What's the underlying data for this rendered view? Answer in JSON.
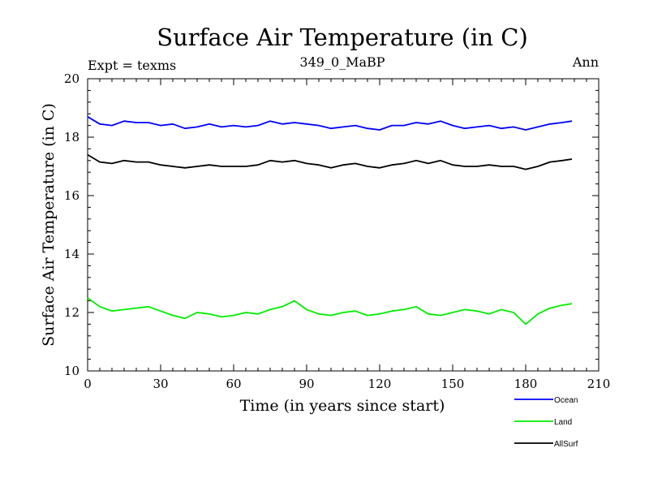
{
  "chart_data": {
    "type": "line",
    "title": "Surface Air Temperature (in C)",
    "subtitle_left": "Expt = texms",
    "subtitle_center": "349_0_MaBP",
    "subtitle_right": "Ann",
    "xlabel": "Time (in years since start)",
    "ylabel": "Surface Air Temperature (in C)",
    "xlim": [
      0,
      210
    ],
    "ylim": [
      10,
      20
    ],
    "xticks": [
      0,
      30,
      60,
      90,
      120,
      150,
      180,
      210
    ],
    "yticks": [
      10,
      12,
      14,
      16,
      18,
      20
    ],
    "grid": false,
    "legend_position": "bottom-right",
    "x": [
      0,
      5,
      10,
      15,
      20,
      25,
      30,
      35,
      40,
      45,
      50,
      55,
      60,
      65,
      70,
      75,
      80,
      85,
      90,
      95,
      100,
      105,
      110,
      115,
      120,
      125,
      130,
      135,
      140,
      145,
      150,
      155,
      160,
      165,
      170,
      175,
      180,
      185,
      190,
      195,
      199
    ],
    "series": [
      {
        "name": "Ocean",
        "color": "#0000ff",
        "values": [
          18.7,
          18.45,
          18.4,
          18.55,
          18.5,
          18.5,
          18.4,
          18.45,
          18.3,
          18.35,
          18.45,
          18.35,
          18.4,
          18.35,
          18.4,
          18.55,
          18.45,
          18.5,
          18.45,
          18.4,
          18.3,
          18.35,
          18.4,
          18.3,
          18.25,
          18.4,
          18.4,
          18.5,
          18.45,
          18.55,
          18.4,
          18.3,
          18.35,
          18.4,
          18.3,
          18.35,
          18.25,
          18.35,
          18.45,
          18.5,
          18.55
        ]
      },
      {
        "name": "Land",
        "color": "#00ee00",
        "values": [
          12.5,
          12.2,
          12.05,
          12.1,
          12.15,
          12.2,
          12.05,
          11.9,
          11.8,
          12.0,
          11.95,
          11.85,
          11.9,
          12.0,
          11.95,
          12.1,
          12.2,
          12.4,
          12.1,
          11.95,
          11.9,
          12.0,
          12.05,
          11.9,
          11.95,
          12.05,
          12.1,
          12.2,
          11.95,
          11.9,
          12.0,
          12.1,
          12.05,
          11.95,
          12.1,
          12.0,
          11.6,
          11.95,
          12.15,
          12.25,
          12.3
        ]
      },
      {
        "name": "AllSurf",
        "color": "#000000",
        "values": [
          17.4,
          17.15,
          17.1,
          17.2,
          17.15,
          17.15,
          17.05,
          17.0,
          16.95,
          17.0,
          17.05,
          17.0,
          17.0,
          17.0,
          17.05,
          17.2,
          17.15,
          17.2,
          17.1,
          17.05,
          16.95,
          17.05,
          17.1,
          17.0,
          16.95,
          17.05,
          17.1,
          17.2,
          17.1,
          17.2,
          17.05,
          17.0,
          17.0,
          17.05,
          17.0,
          17.0,
          16.9,
          17.0,
          17.15,
          17.2,
          17.25
        ]
      }
    ]
  }
}
